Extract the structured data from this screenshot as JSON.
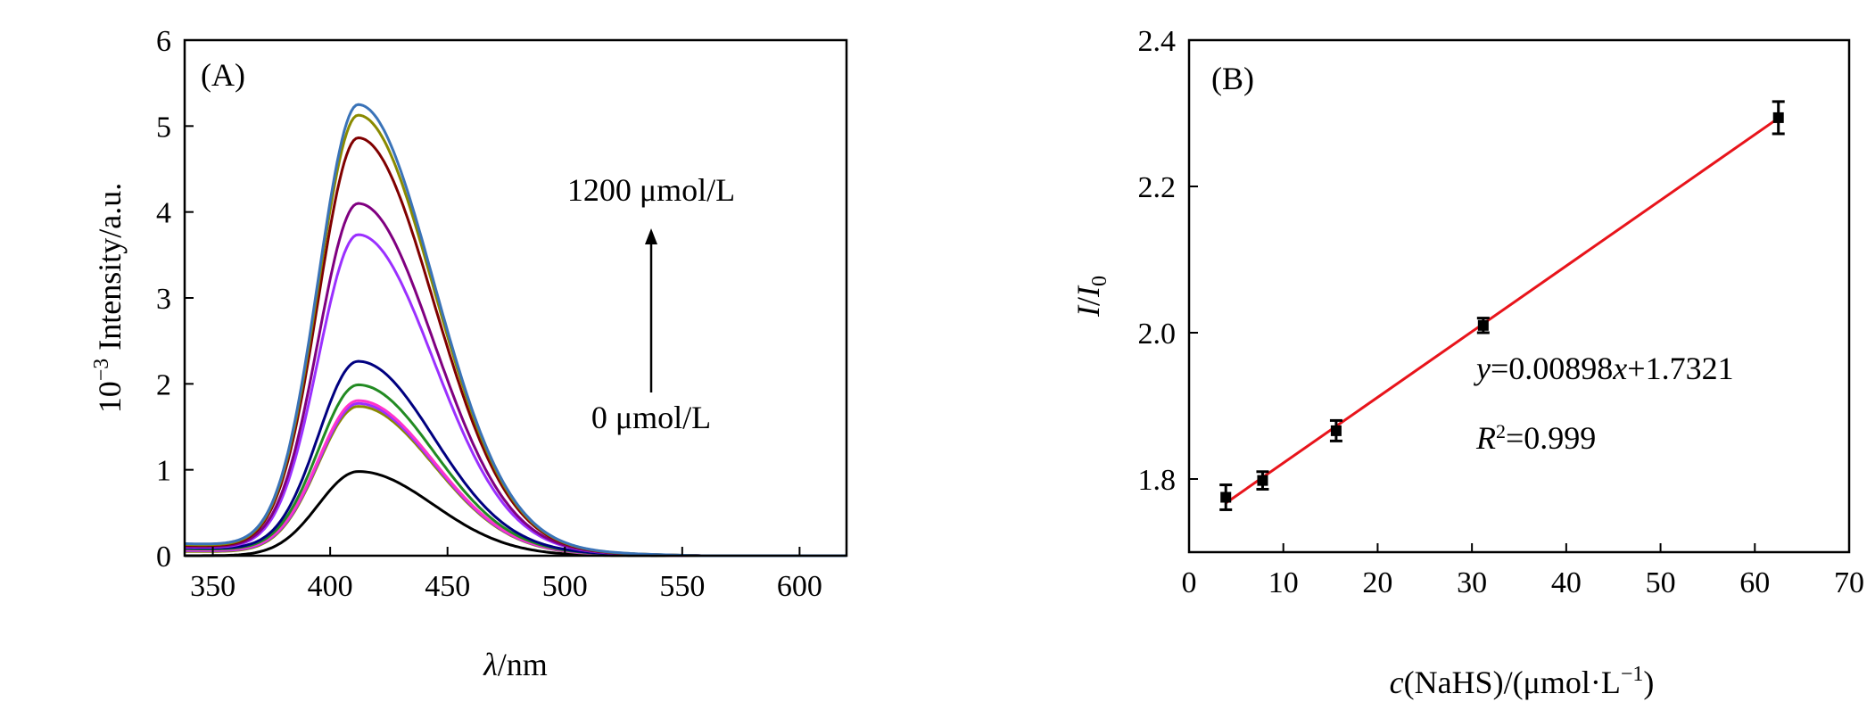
{
  "chart_data": [
    {
      "type": "line",
      "panel_label": "(A)",
      "xlabel_symbol": "λ",
      "xlabel_rest": "/nm",
      "ylabel_base": "10",
      "ylabel_exp": "−3",
      "ylabel_rest": " Intensity/a.u.",
      "xlim": [
        338,
        620
      ],
      "ylim": [
        0,
        6
      ],
      "xticks": [
        350,
        400,
        450,
        500,
        550,
        600
      ],
      "yticks": [
        0,
        1,
        2,
        3,
        4,
        5,
        6
      ],
      "peak_x": 412,
      "annotation_top": "1200 μmol/L",
      "annotation_bottom": "0 μmol/L",
      "series": [
        {
          "peak": 0.98,
          "baseline": 0.0,
          "color": "#000000"
        },
        {
          "peak": 1.72,
          "baseline": 0.05,
          "color": "#8a8a00"
        },
        {
          "peak": 1.75,
          "baseline": 0.06,
          "color": "#9b30ff"
        },
        {
          "peak": 1.78,
          "baseline": 0.07,
          "color": "#ff33cc"
        },
        {
          "peak": 1.96,
          "baseline": 0.08,
          "color": "#228b22"
        },
        {
          "peak": 2.23,
          "baseline": 0.09,
          "color": "#000080"
        },
        {
          "peak": 3.7,
          "baseline": 0.1,
          "color": "#9b30ff"
        },
        {
          "peak": 4.06,
          "baseline": 0.11,
          "color": "#800080"
        },
        {
          "peak": 4.82,
          "baseline": 0.12,
          "color": "#800000"
        },
        {
          "peak": 5.08,
          "baseline": 0.13,
          "color": "#8a8a00"
        },
        {
          "peak": 5.2,
          "baseline": 0.14,
          "color": "#3a73b8"
        }
      ]
    },
    {
      "type": "scatter",
      "panel_label": "(B)",
      "xlabel_italic": "c",
      "xlabel_rest": "(NaHS)/(μmol·L",
      "xlabel_exp": "−1",
      "xlabel_close": ")",
      "ylabel_I": "I",
      "ylabel_slash": "/",
      "ylabel_I0": "I",
      "ylabel_sub": "0",
      "xlim": [
        0,
        70
      ],
      "ylim": [
        1.7,
        2.4
      ],
      "xticks": [
        0,
        10,
        20,
        30,
        40,
        50,
        60,
        70
      ],
      "yticks": [
        1.8,
        2.0,
        2.2,
        2.4
      ],
      "ytick_labels": [
        "1.8",
        "2.0",
        "2.2",
        "2.4"
      ],
      "points": [
        {
          "x": 3.9,
          "y": 1.775,
          "err": 0.017
        },
        {
          "x": 7.8,
          "y": 1.798,
          "err": 0.012
        },
        {
          "x": 15.6,
          "y": 1.866,
          "err": 0.014
        },
        {
          "x": 31.2,
          "y": 2.01,
          "err": 0.01
        },
        {
          "x": 62.5,
          "y": 2.294,
          "err": 0.022
        }
      ],
      "fit": {
        "slope": 0.00898,
        "intercept": 1.7321,
        "x_range": [
          3.9,
          62.5
        ],
        "color": "#e8141b"
      },
      "equation_y": "y",
      "equation_mid": "=0.00898",
      "equation_x": "x",
      "equation_end": "+1.7321",
      "r2_R": "R",
      "r2_sup": "2",
      "r2_val": "=0.999"
    }
  ]
}
